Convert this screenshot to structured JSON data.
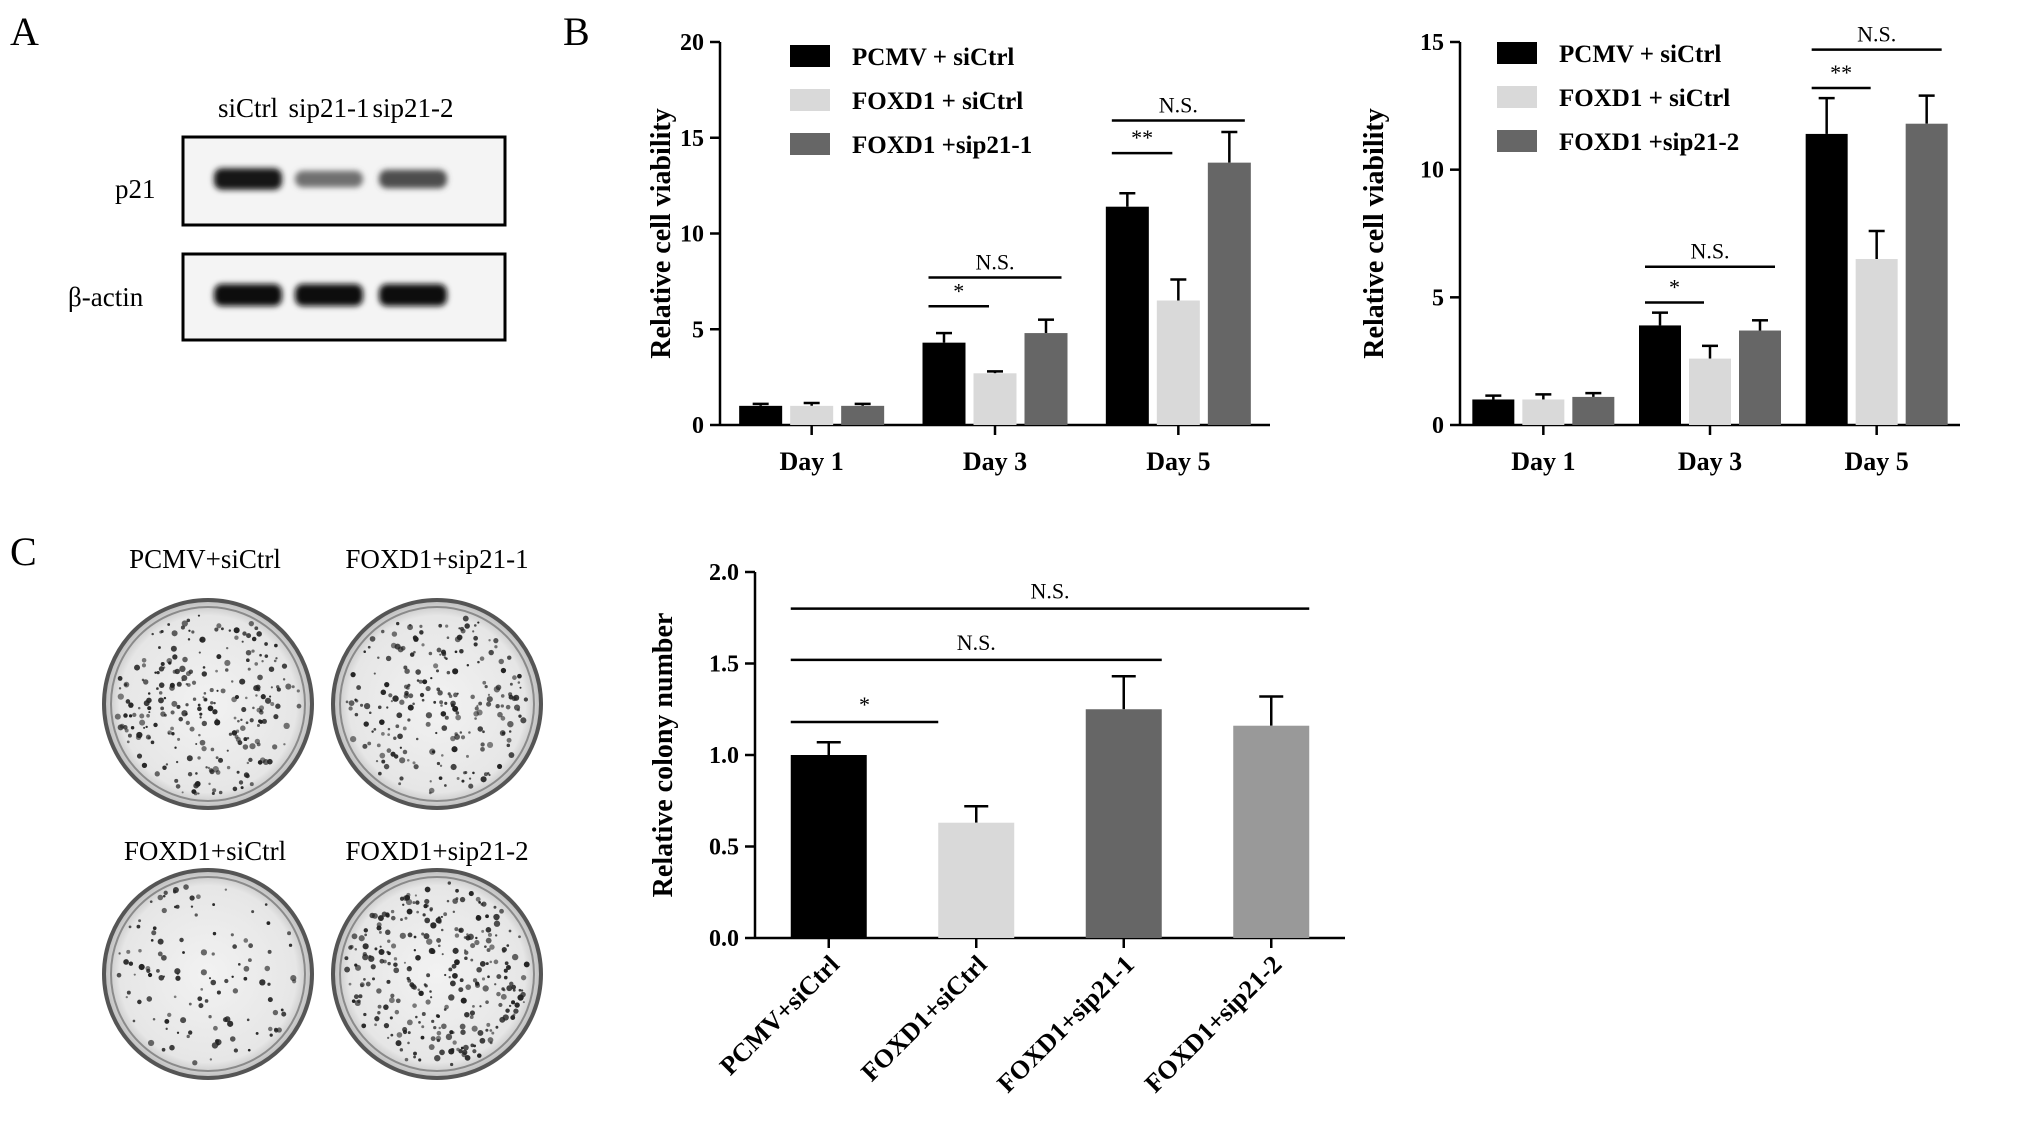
{
  "panels": {
    "a": "A",
    "b": "B",
    "c": "C"
  },
  "western_blot": {
    "lanes": [
      "siCtrl",
      "sip21-1",
      "sip21-2"
    ],
    "rows": [
      {
        "label": "p21",
        "intensity": [
          0.95,
          0.55,
          0.7
        ]
      },
      {
        "label": "β-actin",
        "intensity": [
          1.0,
          1.0,
          1.0
        ]
      }
    ]
  },
  "colony_images": {
    "labels": [
      "PCMV+siCtrl",
      "FOXD1+sip21-1",
      "FOXD1+siCtrl",
      "FOXD1+sip21-2"
    ]
  },
  "colors": {
    "black": "#000000",
    "light_gray": "#d9d9d9",
    "dark_gray": "#666666",
    "mid_gray": "#999999"
  },
  "chart_data": [
    {
      "type": "bar",
      "ylabel": "Relative cell viability",
      "xlabel": "",
      "categories": [
        "Day 1",
        "Day 3",
        "Day 5"
      ],
      "ylim": [
        0,
        20
      ],
      "yticks": [
        "0",
        "5",
        "10",
        "15",
        "20"
      ],
      "series": [
        {
          "name": "PCMV  + siCtrl",
          "color": "#000000",
          "values": [
            1.0,
            4.3,
            11.4
          ],
          "errors": [
            0.1,
            0.5,
            0.7
          ]
        },
        {
          "name": "FOXD1 + siCtrl",
          "color": "#d9d9d9",
          "values": [
            1.0,
            2.7,
            6.5
          ],
          "errors": [
            0.15,
            0.1,
            1.1
          ]
        },
        {
          "name": "FOXD1 +sip21-1",
          "color": "#666666",
          "values": [
            1.0,
            4.8,
            13.7
          ],
          "errors": [
            0.1,
            0.7,
            1.6
          ]
        }
      ],
      "legend_position": "top-left",
      "annotations": [
        {
          "text": "*",
          "group": 1,
          "from": 0,
          "to": 1,
          "level": 6.2
        },
        {
          "text": "N.S.",
          "group": 1,
          "from": 0,
          "to": 2,
          "level": 7.7
        },
        {
          "text": "**",
          "group": 2,
          "from": 0,
          "to": 1,
          "level": 14.2
        },
        {
          "text": "N.S.",
          "group": 2,
          "from": 0,
          "to": 2,
          "level": 15.9
        }
      ]
    },
    {
      "type": "bar",
      "ylabel": "Relative cell viability",
      "xlabel": "",
      "categories": [
        "Day 1",
        "Day 3",
        "Day 5"
      ],
      "ylim": [
        0,
        15
      ],
      "yticks": [
        "0",
        "5",
        "10",
        "15"
      ],
      "series": [
        {
          "name": "PCMV  + siCtrl",
          "color": "#000000",
          "values": [
            1.0,
            3.9,
            11.4
          ],
          "errors": [
            0.15,
            0.5,
            1.4
          ]
        },
        {
          "name": "FOXD1 + siCtrl",
          "color": "#d9d9d9",
          "values": [
            1.0,
            2.6,
            6.5
          ],
          "errors": [
            0.2,
            0.5,
            1.1
          ]
        },
        {
          "name": "FOXD1 +sip21-2",
          "color": "#666666",
          "values": [
            1.1,
            3.7,
            11.8
          ],
          "errors": [
            0.15,
            0.4,
            1.1
          ]
        }
      ],
      "legend_position": "top-left",
      "annotations": [
        {
          "text": "*",
          "group": 1,
          "from": 0,
          "to": 1,
          "level": 4.8
        },
        {
          "text": "N.S.",
          "group": 1,
          "from": 0,
          "to": 2,
          "level": 6.2
        },
        {
          "text": "**",
          "group": 2,
          "from": 0,
          "to": 1,
          "level": 13.2
        },
        {
          "text": "N.S.",
          "group": 2,
          "from": 0,
          "to": 2,
          "level": 14.7
        }
      ]
    },
    {
      "type": "bar",
      "ylabel": "Relative colony number",
      "xlabel": "",
      "categories": [
        "PCMV+siCtrl",
        "FOXD1+siCtrl",
        "FOXD1+sip21-1",
        "FOXD1+sip21-2"
      ],
      "ylim": [
        0,
        2.0
      ],
      "yticks": [
        "0.0",
        "0.5",
        "1.0",
        "1.5",
        "2.0"
      ],
      "values": [
        1.0,
        0.63,
        1.25,
        1.16
      ],
      "errors": [
        0.07,
        0.09,
        0.18,
        0.16
      ],
      "colors": [
        "#000000",
        "#d9d9d9",
        "#666666",
        "#999999"
      ],
      "annotations": [
        {
          "text": "*",
          "from": 0,
          "to": 1,
          "level": 1.18
        },
        {
          "text": "N.S.",
          "from": 0,
          "to": 2,
          "level": 1.52
        },
        {
          "text": "N.S.",
          "from": 0,
          "to": 3,
          "level": 1.8
        }
      ]
    }
  ]
}
